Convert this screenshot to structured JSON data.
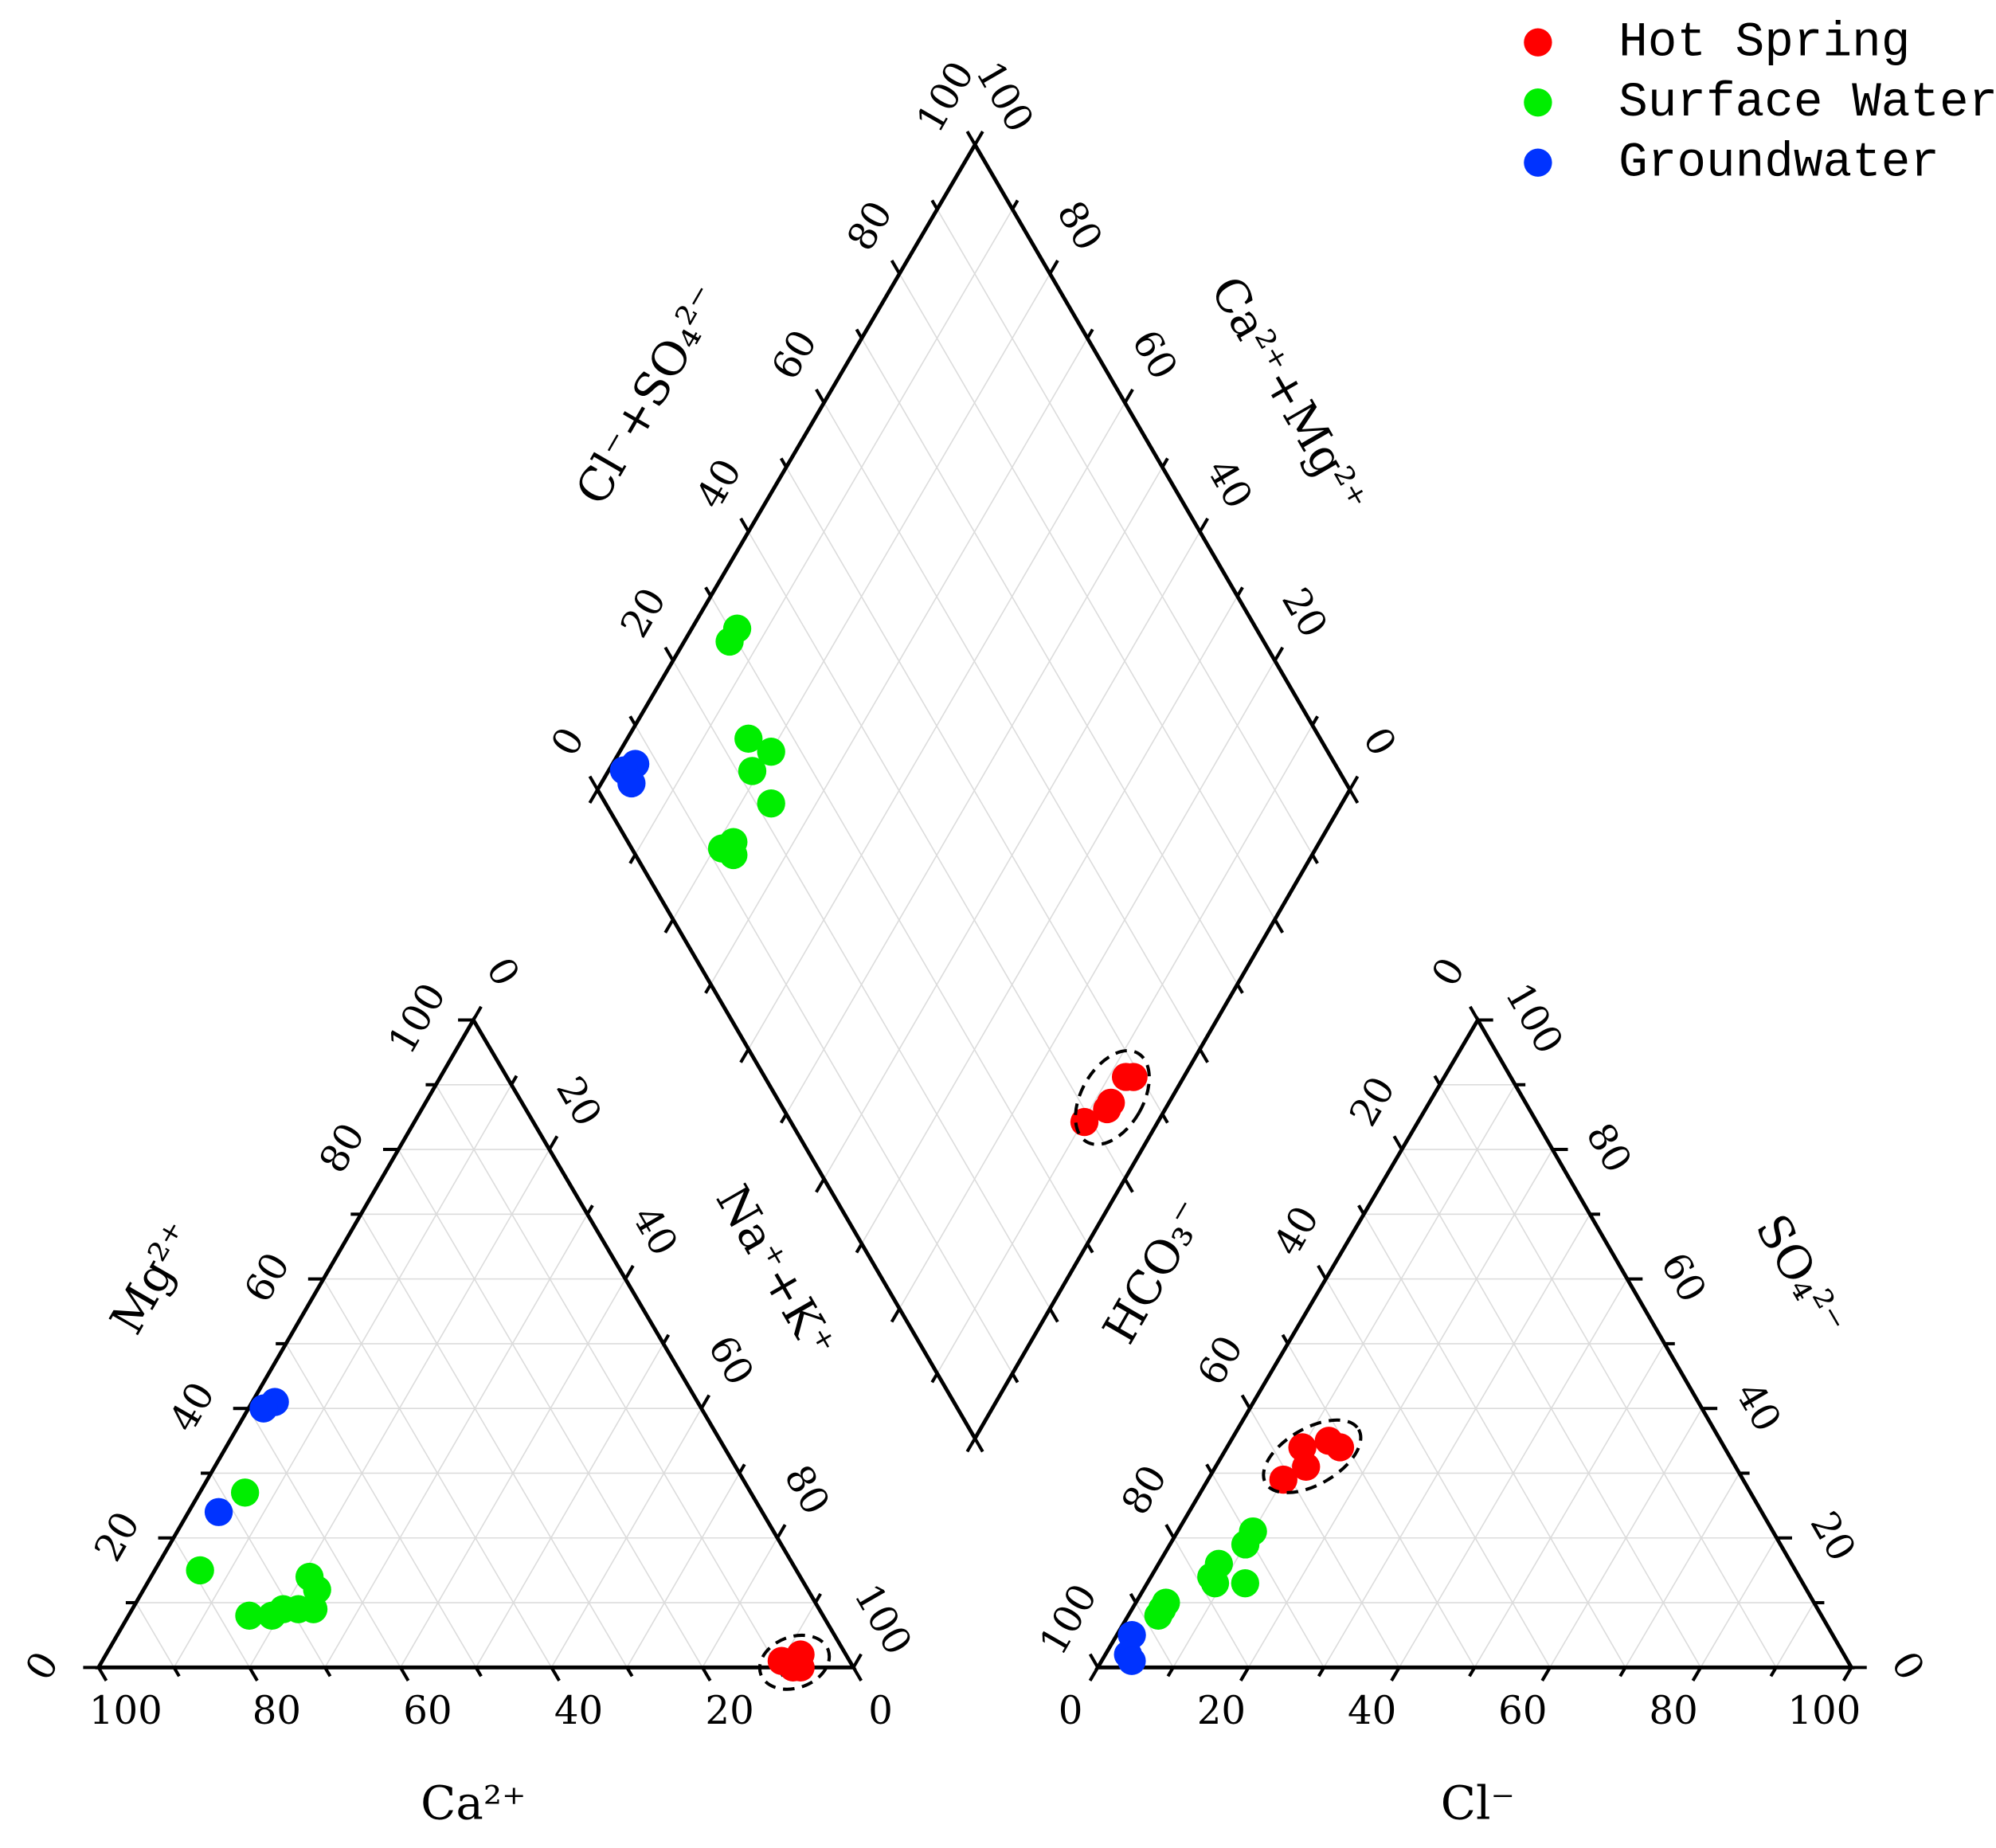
{
  "chart_data": {
    "type": "piper",
    "ticks": [
      0,
      20,
      40,
      60,
      80,
      100
    ],
    "minor_ticks": [
      10,
      30,
      50,
      70,
      90
    ],
    "grid": true,
    "legend_position": "top-right",
    "axes": {
      "ca": "Ca²⁺",
      "mg": "Mg²⁺",
      "nak": "Na⁺+K⁺",
      "cl": "Cl⁻",
      "so4": "SO₄²⁻",
      "hco3": "HCO₃⁻",
      "clso4": "Cl⁻+SO₄²⁻",
      "camg": "Ca²⁺+Mg²⁺"
    },
    "series": [
      {
        "name": "Hot Spring",
        "color": "#ff0000",
        "ca": [
          9,
          6,
          8,
          7,
          7
        ],
        "mg": [
          1,
          2,
          0,
          1,
          0
        ],
        "cl": [
          10,
          12,
          10,
          13,
          15
        ],
        "so4": [
          29,
          31,
          34,
          35,
          34
        ]
      },
      {
        "name": "Surface Water",
        "color": "#00ee00",
        "ca": [
          67,
          79,
          76,
          73,
          71,
          69,
          65,
          65,
          67
        ],
        "mg": [
          27,
          15,
          8,
          8,
          9,
          9,
          14,
          12,
          9
        ],
        "cl": [
          10,
          10,
          8,
          9,
          13,
          4,
          4,
          4,
          8
        ],
        "so4": [
          21,
          19,
          16,
          13,
          13,
          10,
          8,
          9,
          14
        ]
      },
      {
        "name": "Groundwater",
        "color": "#0033ff",
        "ca": [
          56,
          58,
          72
        ],
        "mg": [
          41,
          40,
          24
        ],
        "cl": [
          2,
          3,
          4
        ],
        "so4": [
          5,
          2,
          1
        ]
      }
    ]
  }
}
